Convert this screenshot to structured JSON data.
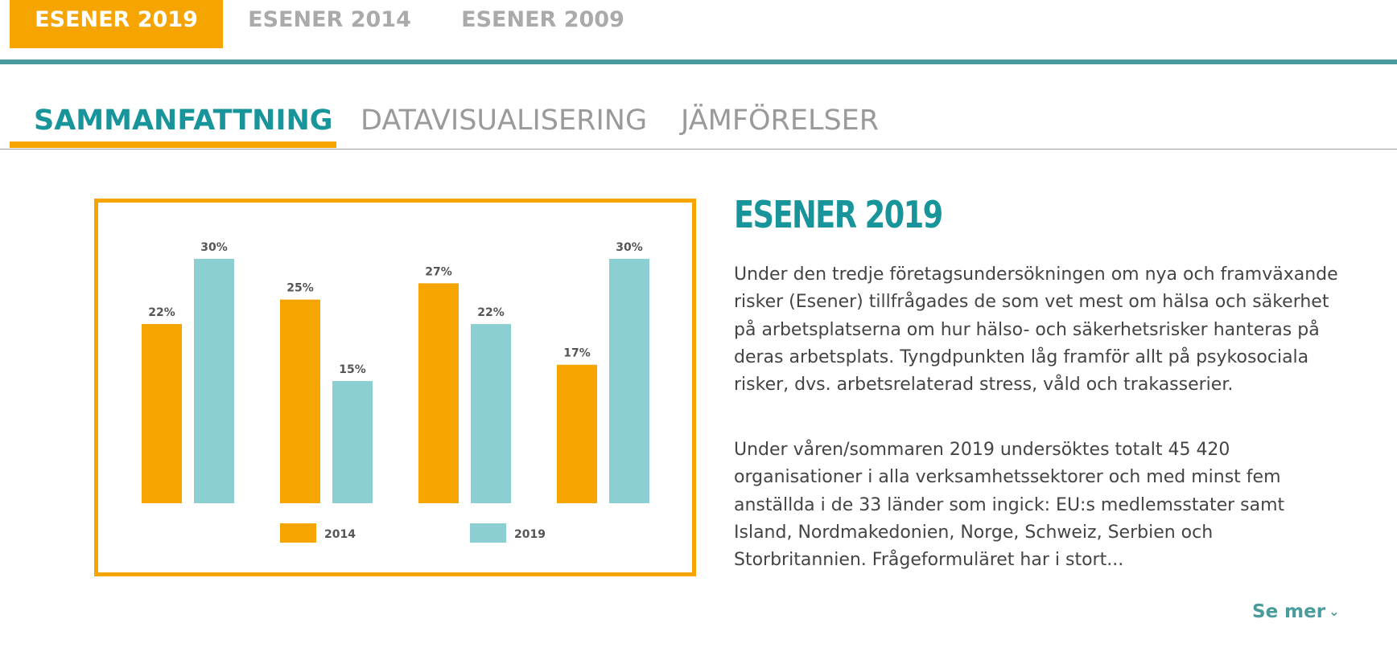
{
  "edition_tabs": [
    {
      "label": "ESENER 2019",
      "active": true
    },
    {
      "label": "ESENER 2014",
      "active": false
    },
    {
      "label": "ESENER 2009",
      "active": false
    }
  ],
  "section_tabs": [
    {
      "label": "SAMMANFATTNING",
      "active": true
    },
    {
      "label": "DATAVISUALISERING",
      "active": false
    },
    {
      "label": "JÄMFÖRELSER",
      "active": false
    }
  ],
  "colors": {
    "accent_orange": "#f6a400",
    "accent_teal": "#17959a",
    "series_2019": "#8bcfd3",
    "rule_teal": "#4a9c9c"
  },
  "chart_data": {
    "type": "bar",
    "categories": [
      "",
      "",
      "",
      ""
    ],
    "series": [
      {
        "name": "2014",
        "color": "#f6a400",
        "values": [
          22,
          25,
          27,
          17
        ],
        "labels": [
          "22%",
          "25%",
          "27%",
          "17%"
        ]
      },
      {
        "name": "2019",
        "color": "#8bcfd3",
        "values": [
          30,
          15,
          22,
          30
        ],
        "labels": [
          "30%",
          "15%",
          "22%",
          "30%"
        ]
      }
    ],
    "ylim": [
      0,
      30
    ],
    "grid": false,
    "legend": "bottom"
  },
  "article": {
    "title": "ESENER 2019",
    "paragraphs": [
      "Under den tredje företagsundersökningen om nya och framväxande risker (Esener) tillfrågades de som vet mest om hälsa och säkerhet på arbetsplatserna om hur hälso- och säkerhetsrisker hanteras på deras arbetsplats. Tyngdpunkten låg framför allt på psykosociala risker, dvs. arbetsrelaterad stress, våld och trakasserier.",
      "Under våren/sommaren 2019 undersöktes totalt 45 420 organisationer i alla verksamhetssektorer och med minst fem anställda i de 33 länder som ingick: EU:s medlemsstater samt Island, Nordmakedonien, Norge, Schweiz, Serbien och Storbritannien. Frågeformuläret har i stort..."
    ],
    "see_more_label": "Se mer",
    "see_more_icon": "chevron-down-icon"
  }
}
